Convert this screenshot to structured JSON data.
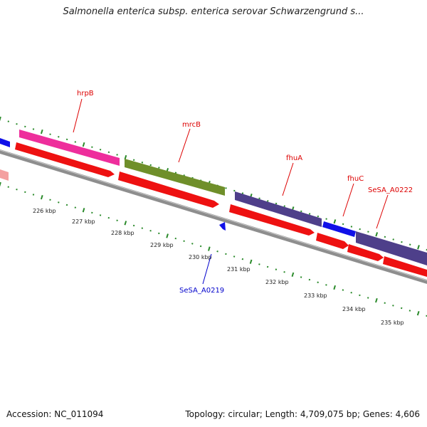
{
  "title": "Salmonella enterica subsp. enterica serovar Schwarzengrund s...",
  "footer": {
    "accession": "Accession: NC_011094",
    "summary": "Topology: circular; Length: 4,709,075 bp; Genes: 4,606"
  },
  "colors": {
    "backbone": "#8c8c8c",
    "tick": "#2a8a2a",
    "hrpB": "#ee2e9c",
    "mrcB": "#6f8f2a",
    "fhuA": "#4e3f8a",
    "fhuC": "#1010e8",
    "reverse_strand": "#ee1111",
    "label_red": "#dd0000",
    "label_blue": "#0000cc",
    "tick_label": "#222222"
  },
  "scale_labels": [
    "226 kbp",
    "227 kbp",
    "228 kbp",
    "229 kbp",
    "230 kbp",
    "231 kbp",
    "232 kbp",
    "233 kbp",
    "234 kbp",
    "235 kbp"
  ],
  "gene_labels": [
    {
      "name": "hrpB",
      "color": "label_red"
    },
    {
      "name": "mrcB",
      "color": "label_red"
    },
    {
      "name": "fhuA",
      "color": "label_red"
    },
    {
      "name": "fhuC",
      "color": "label_red"
    },
    {
      "name": "SeSA_A0222",
      "color": "label_red"
    },
    {
      "name": "SeSA_A0219",
      "color": "label_blue"
    }
  ]
}
